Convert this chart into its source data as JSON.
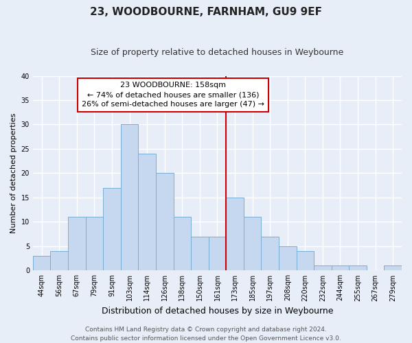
{
  "title": "23, WOODBOURNE, FARNHAM, GU9 9EF",
  "subtitle": "Size of property relative to detached houses in Weybourne",
  "xlabel": "Distribution of detached houses by size in Weybourne",
  "ylabel": "Number of detached properties",
  "footer_line1": "Contains HM Land Registry data © Crown copyright and database right 2024.",
  "footer_line2": "Contains public sector information licensed under the Open Government Licence v3.0.",
  "bar_labels": [
    "44sqm",
    "56sqm",
    "67sqm",
    "79sqm",
    "91sqm",
    "103sqm",
    "114sqm",
    "126sqm",
    "138sqm",
    "150sqm",
    "161sqm",
    "173sqm",
    "185sqm",
    "197sqm",
    "208sqm",
    "220sqm",
    "232sqm",
    "244sqm",
    "255sqm",
    "267sqm",
    "279sqm"
  ],
  "bar_values": [
    3,
    4,
    11,
    11,
    17,
    30,
    24,
    20,
    11,
    7,
    7,
    15,
    11,
    7,
    5,
    4,
    1,
    1,
    1,
    0,
    1
  ],
  "bar_color": "#c5d8f0",
  "bar_edge_color": "#7aadd4",
  "vline_x": 10.5,
  "vline_color": "#cc0000",
  "ylim": [
    0,
    40
  ],
  "yticks": [
    0,
    5,
    10,
    15,
    20,
    25,
    30,
    35,
    40
  ],
  "annotation_title": "23 WOODBOURNE: 158sqm",
  "annotation_line1": "← 74% of detached houses are smaller (136)",
  "annotation_line2": "26% of semi-detached houses are larger (47) →",
  "annotation_box_color": "#ffffff",
  "annotation_box_edge": "#cc0000",
  "bg_color": "#e8eef8",
  "grid_color": "#ffffff",
  "title_fontsize": 11,
  "subtitle_fontsize": 9,
  "xlabel_fontsize": 9,
  "ylabel_fontsize": 8,
  "tick_fontsize": 7,
  "footer_fontsize": 6.5,
  "ann_fontsize": 8
}
